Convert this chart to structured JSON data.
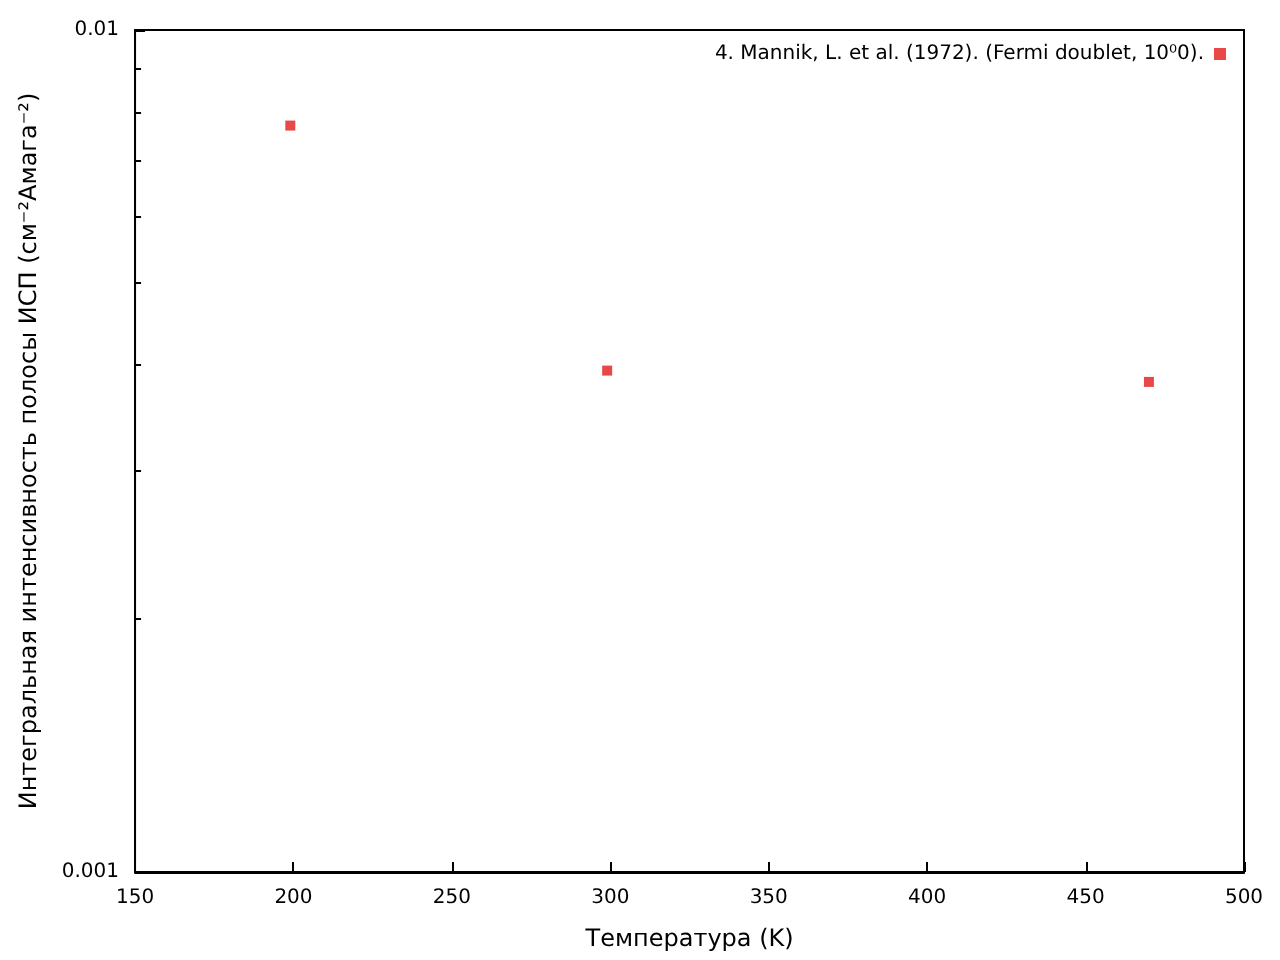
{
  "chart_data": {
    "type": "scatter",
    "xlabel": "Температура (K)",
    "ylabel": "Интегральная интенсивность полосы ИСП (cм⁻²Амага⁻²)",
    "series": [
      {
        "name": "4. Mannik, L. et al. (1972). (Fermi doublet, 10⁰0).",
        "color": "#e41a1c",
        "x": [
          199,
          299,
          470
        ],
        "values": [
          0.0077,
          0.00394,
          0.00382
        ]
      }
    ],
    "xlim": [
      150,
      500
    ],
    "xticks": [
      150,
      200,
      250,
      300,
      350,
      400,
      450,
      500
    ],
    "ylim": [
      0.001,
      0.01
    ],
    "yticks": [
      0.001,
      0.01
    ],
    "log": "y",
    "marker": "square",
    "legend": "top right",
    "grid": false
  }
}
